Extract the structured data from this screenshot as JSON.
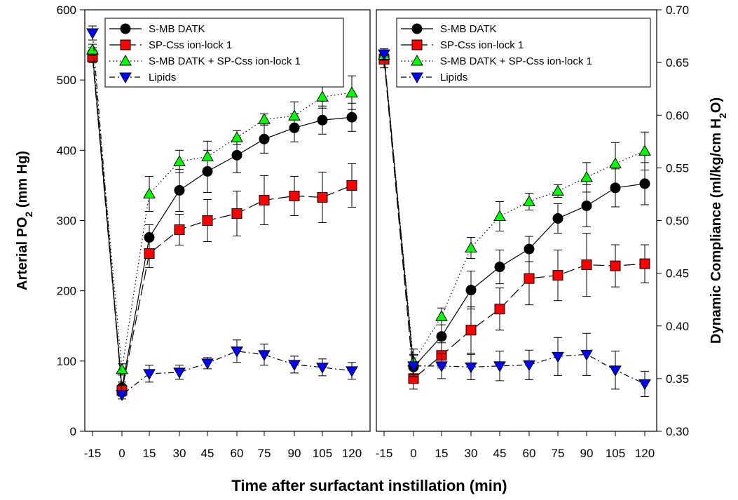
{
  "figure": {
    "xlabel": "Time after surfactant instillation (min)"
  },
  "chart_data": [
    {
      "type": "line",
      "panel": "left",
      "ylabel_main": "Arterial PO",
      "ylabel_sub": "2",
      "ylabel_tail": " (mm Hg)",
      "x": [
        -15,
        0,
        15,
        30,
        45,
        60,
        75,
        90,
        105,
        120
      ],
      "xtick_labels": [
        "-15",
        "0",
        "15",
        "30",
        "45",
        "60",
        "75",
        "90",
        "105",
        "120"
      ],
      "ylim": [
        0,
        600
      ],
      "yticks": [
        0,
        100,
        200,
        300,
        400,
        500,
        600
      ],
      "ytick_labels": [
        "0",
        "100",
        "200",
        "300",
        "400",
        "500",
        "600"
      ],
      "legend_position": "top",
      "series": [
        {
          "name": "S-MB DATK",
          "marker": "circle",
          "color": "#000000",
          "dash": "solid",
          "values": [
            538,
            62,
            276,
            343,
            370,
            393,
            416,
            432,
            443,
            447
          ],
          "errors": [
            8,
            8,
            18,
            30,
            30,
            25,
            20,
            20,
            20,
            20
          ]
        },
        {
          "name": "SP-Css ion-lock 1",
          "marker": "square",
          "color": "#ff0000",
          "dash": "longdash",
          "values": [
            533,
            58,
            253,
            287,
            300,
            310,
            329,
            335,
            333,
            350
          ],
          "errors": [
            8,
            8,
            20,
            22,
            30,
            32,
            35,
            28,
            36,
            31
          ]
        },
        {
          "name": "S-MB DATK + SP-Css ion-lock 1",
          "marker": "triangle-up",
          "color": "#00ff00",
          "dash": "dotted",
          "values": [
            543,
            88,
            338,
            384,
            391,
            418,
            444,
            449,
            476,
            482
          ],
          "errors": [
            8,
            8,
            25,
            16,
            22,
            10,
            8,
            20,
            16,
            24
          ]
        },
        {
          "name": "Lipids",
          "marker": "triangle-down",
          "color": "#0000ff",
          "dash": "dashdot",
          "values": [
            567,
            52,
            82,
            84,
            97,
            114,
            109,
            95,
            91,
            86
          ],
          "errors": [
            10,
            6,
            12,
            10,
            8,
            16,
            15,
            12,
            12,
            12
          ]
        }
      ]
    },
    {
      "type": "line",
      "panel": "right",
      "ylabel_main": "Dynamic Compliance (ml/kg/cm H",
      "ylabel_sub": "2",
      "ylabel_tail": "O)",
      "x": [
        -15,
        0,
        15,
        30,
        45,
        60,
        75,
        90,
        105,
        120
      ],
      "xtick_labels": [
        "-15",
        "0",
        "15",
        "30",
        "45",
        "60",
        "75",
        "90",
        "105",
        "120"
      ],
      "ylim": [
        0.3,
        0.7
      ],
      "yticks": [
        0.3,
        0.35,
        0.4,
        0.45,
        0.5,
        0.55,
        0.6,
        0.65,
        0.7
      ],
      "ytick_labels": [
        "0.30",
        "0.35",
        "0.40",
        "0.45",
        "0.50",
        "0.55",
        "0.60",
        "0.65",
        "0.70"
      ],
      "legend_position": "top",
      "series": [
        {
          "name": "S-MB DATK",
          "marker": "circle",
          "color": "#000000",
          "dash": "solid",
          "values": [
            0.656,
            0.361,
            0.39,
            0.434,
            0.456,
            0.473,
            0.502,
            0.514,
            0.531,
            0.535
          ],
          "errors": [
            0.005,
            0.012,
            0.015,
            0.018,
            0.016,
            0.012,
            0.014,
            0.02,
            0.018,
            0.02
          ]
        },
        {
          "name": "SP-Css ion-lock 1",
          "marker": "square",
          "color": "#ff0000",
          "dash": "longdash",
          "values": [
            0.653,
            0.35,
            0.372,
            0.396,
            0.416,
            0.445,
            0.448,
            0.458,
            0.457,
            0.459
          ],
          "errors": [
            0.008,
            0.01,
            0.012,
            0.022,
            0.02,
            0.025,
            0.024,
            0.03,
            0.02,
            0.018
          ]
        },
        {
          "name": "S-MB DATK + SP-Css ion-lock 1",
          "marker": "triangle-up",
          "color": "#00ff00",
          "dash": "dotted",
          "values": [
            0.657,
            0.366,
            0.409,
            0.474,
            0.504,
            0.518,
            0.528,
            0.541,
            0.554,
            0.566
          ],
          "errors": [
            0.005,
            0.012,
            0.008,
            0.01,
            0.014,
            0.008,
            0.006,
            0.014,
            0.02,
            0.018
          ]
        },
        {
          "name": "Lipids",
          "marker": "triangle-down",
          "color": "#0000ff",
          "dash": "dashdot",
          "values": [
            0.658,
            0.362,
            0.362,
            0.361,
            0.362,
            0.363,
            0.371,
            0.373,
            0.358,
            0.345
          ],
          "errors": [
            0.005,
            0.01,
            0.012,
            0.012,
            0.014,
            0.014,
            0.018,
            0.02,
            0.018,
            0.012
          ]
        }
      ]
    }
  ]
}
